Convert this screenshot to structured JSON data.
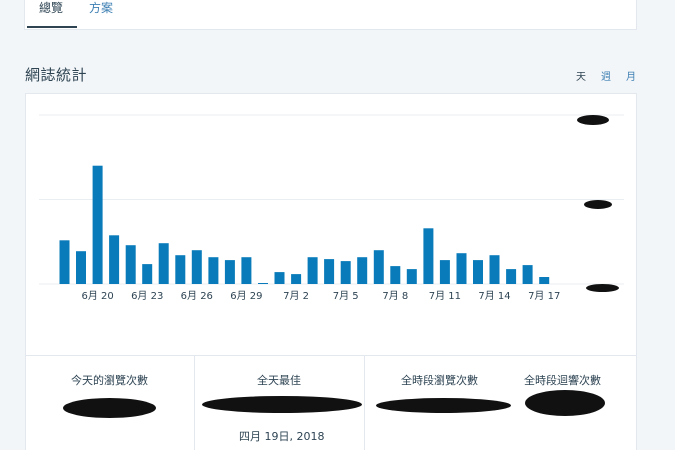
{
  "tabs": [
    {
      "label": "總覽",
      "active": true
    },
    {
      "label": "方案",
      "active": false
    }
  ],
  "section": {
    "title": "網誌統計"
  },
  "period": {
    "day": "天",
    "week": "週",
    "month": "月",
    "selected": "天"
  },
  "colors": {
    "bar": "#0a7bba",
    "link": "#3d7fb3",
    "text": "#2e4453"
  },
  "chart_data": {
    "type": "bar",
    "categories": [
      "6月18",
      "6月19",
      "6月20",
      "6月21",
      "6月22",
      "6月23",
      "6月24",
      "6月25",
      "6月26",
      "6月27",
      "6月28",
      "6月29",
      "6月30",
      "7月1",
      "7月2",
      "7月3",
      "7月4",
      "7月5",
      "7月6",
      "7月7",
      "7月8",
      "7月9",
      "7月10",
      "7月11",
      "7月12",
      "7月13",
      "7月14",
      "7月15",
      "7月16",
      "7月17",
      "7月18"
    ],
    "tick_labels": [
      "6月 20",
      "6月 23",
      "6月 26",
      "6月 29",
      "7月 2",
      "7月 5",
      "7月 8",
      "7月 11",
      "7月 14",
      "7月 17"
    ],
    "values": [
      44,
      33,
      119,
      49,
      39,
      20,
      41,
      29,
      34,
      27,
      24,
      27,
      1,
      12,
      10,
      27,
      25,
      23,
      27,
      34,
      18,
      15,
      56,
      24,
      31,
      24,
      29,
      15,
      19,
      7,
      0
    ],
    "ylim": [
      0,
      170
    ],
    "grid": true
  },
  "stats": [
    {
      "label": "今天的瀏覽次數"
    },
    {
      "label": "全天最佳",
      "date": "四月 19日, 2018"
    },
    {
      "label": "全時段瀏覽次數"
    },
    {
      "label": "全時段迴響次數"
    }
  ]
}
